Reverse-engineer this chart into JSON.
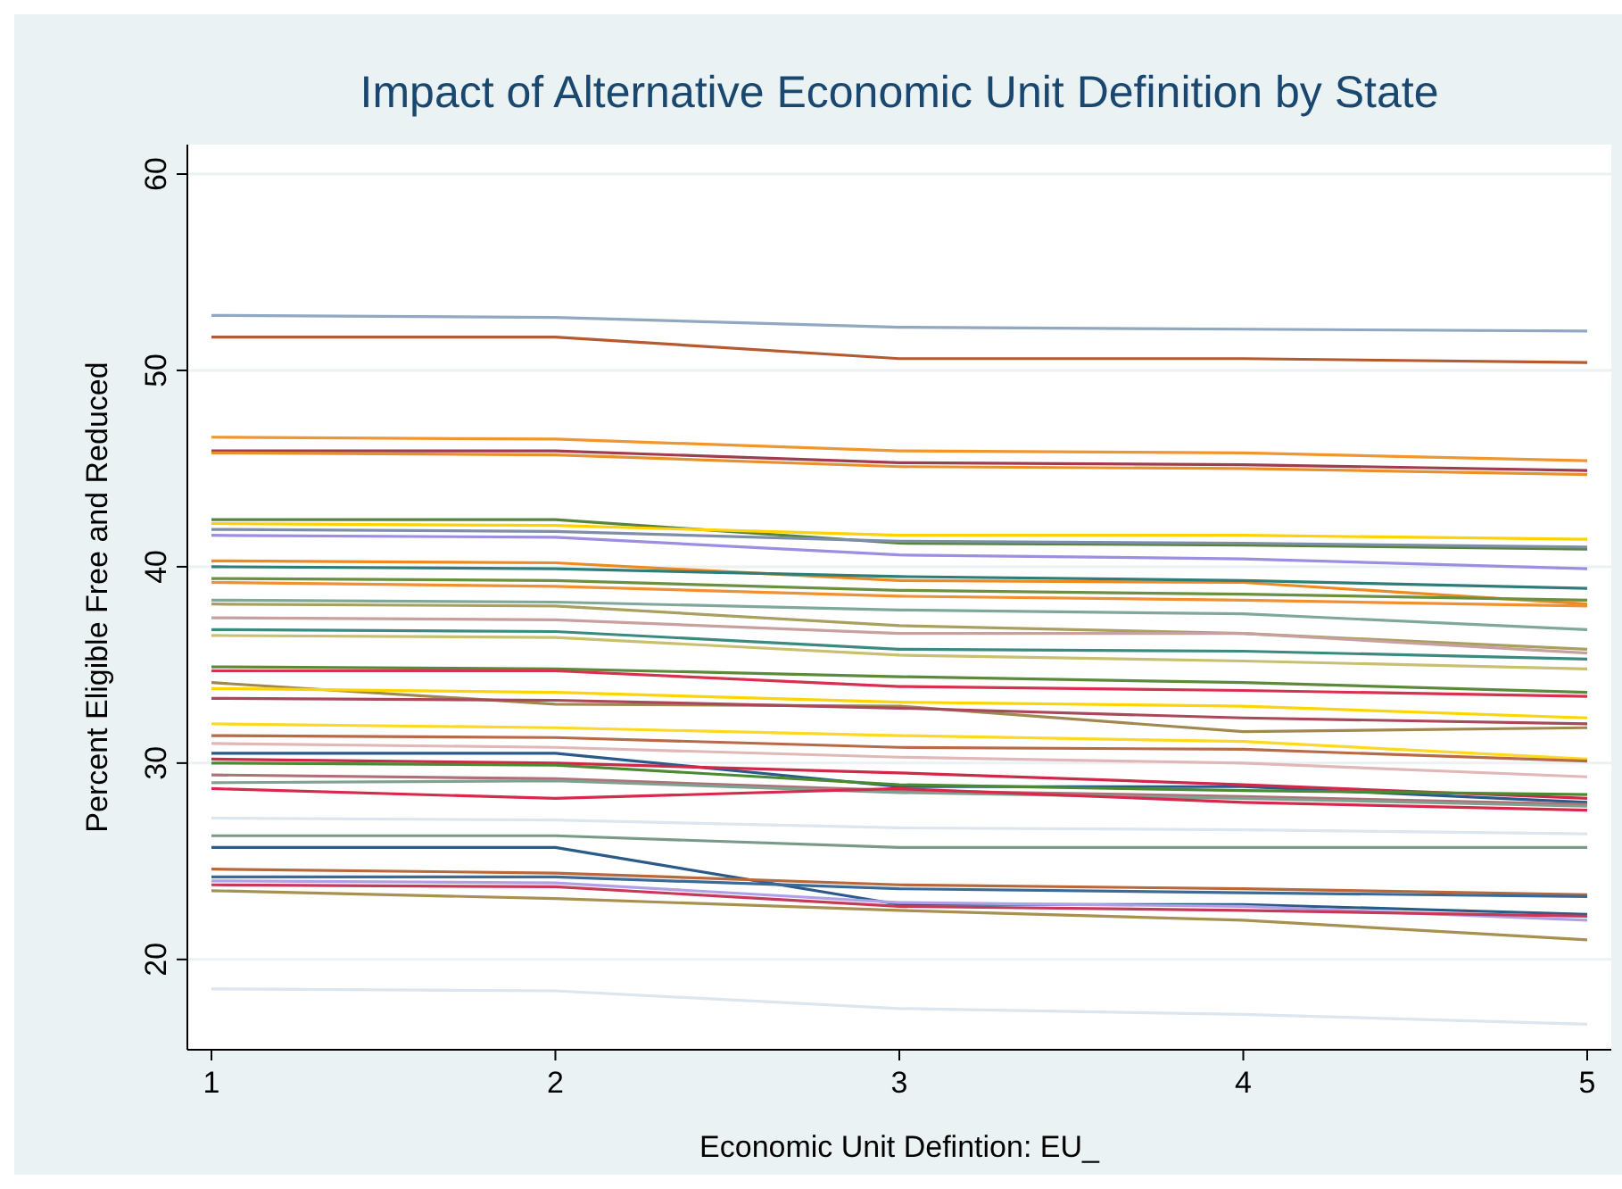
{
  "chart_data": {
    "type": "line",
    "title": "Impact of Alternative Economic Unit Definition by State",
    "xlabel": "Economic Unit Defintion: EU_",
    "ylabel": "Percent Eligible Free and Reduced",
    "x": [
      1,
      2,
      3,
      4,
      5
    ],
    "xlim": [
      0.93,
      5.07
    ],
    "xticks": [
      1,
      2,
      3,
      4,
      5
    ],
    "ylim": [
      15.4,
      61.5
    ],
    "yticks": [
      20,
      30,
      40,
      50,
      60
    ],
    "grid": "y",
    "series": [
      {
        "color": "#90a8c0",
        "values": [
          52.8,
          52.7,
          52.2,
          52.1,
          52.0
        ]
      },
      {
        "color": "#b55a30",
        "values": [
          51.7,
          51.7,
          50.6,
          50.6,
          50.4
        ]
      },
      {
        "color": "#f0962e",
        "values": [
          46.6,
          46.5,
          45.9,
          45.8,
          45.4
        ]
      },
      {
        "color": "#a03c50",
        "values": [
          45.9,
          45.9,
          45.3,
          45.2,
          44.9
        ]
      },
      {
        "color": "#e8902a",
        "values": [
          45.8,
          45.7,
          45.1,
          45.0,
          44.7
        ]
      },
      {
        "color": "#55843c",
        "values": [
          42.4,
          42.4,
          41.2,
          41.1,
          40.9
        ]
      },
      {
        "color": "#ffd200",
        "values": [
          42.2,
          42.1,
          41.6,
          41.6,
          41.4
        ]
      },
      {
        "color": "#7d8fa8",
        "values": [
          41.9,
          41.8,
          41.3,
          41.2,
          41.0
        ]
      },
      {
        "color": "#9a8fe0",
        "values": [
          41.6,
          41.5,
          40.6,
          40.4,
          39.9
        ]
      },
      {
        "color": "#ee8a20",
        "values": [
          40.3,
          40.2,
          39.3,
          39.2,
          38.1
        ]
      },
      {
        "color": "#2e7d78",
        "values": [
          40.0,
          39.9,
          39.5,
          39.3,
          38.9
        ]
      },
      {
        "color": "#6a9040",
        "values": [
          39.4,
          39.3,
          38.8,
          38.6,
          38.3
        ]
      },
      {
        "color": "#f09030",
        "values": [
          39.2,
          39.0,
          38.5,
          38.3,
          38.0
        ]
      },
      {
        "color": "#80a898",
        "values": [
          38.3,
          38.2,
          37.8,
          37.6,
          36.8
        ]
      },
      {
        "color": "#a8a060",
        "values": [
          38.1,
          38.0,
          37.0,
          36.6,
          35.8
        ]
      },
      {
        "color": "#c8a0a0",
        "values": [
          37.4,
          37.3,
          36.6,
          36.6,
          35.6
        ]
      },
      {
        "color": "#3a8a80",
        "values": [
          36.8,
          36.7,
          35.8,
          35.7,
          35.3
        ]
      },
      {
        "color": "#c8c070",
        "values": [
          36.5,
          36.4,
          35.5,
          35.2,
          34.8
        ]
      },
      {
        "color": "#5a8a3a",
        "values": [
          34.9,
          34.8,
          34.4,
          34.1,
          33.6
        ]
      },
      {
        "color": "#d83050",
        "values": [
          34.7,
          34.7,
          33.9,
          33.7,
          33.4
        ]
      },
      {
        "color": "#a08850",
        "values": [
          34.1,
          33.0,
          32.9,
          31.6,
          31.8
        ]
      },
      {
        "color": "#ffd500",
        "values": [
          33.8,
          33.6,
          33.1,
          32.9,
          32.3
        ]
      },
      {
        "color": "#a84858",
        "values": [
          33.3,
          33.2,
          32.8,
          32.3,
          32.0
        ]
      },
      {
        "color": "#ffd820",
        "values": [
          32.0,
          31.8,
          31.4,
          31.1,
          30.2
        ]
      },
      {
        "color": "#b86a48",
        "values": [
          31.4,
          31.3,
          30.8,
          30.7,
          30.1
        ]
      },
      {
        "color": "#e0b8b8",
        "values": [
          31.0,
          30.8,
          30.3,
          30.0,
          29.3
        ]
      },
      {
        "color": "#2a5a8a",
        "values": [
          30.5,
          30.5,
          28.8,
          28.8,
          28.0
        ]
      },
      {
        "color": "#d02848",
        "values": [
          30.2,
          30.0,
          29.5,
          28.9,
          28.2
        ]
      },
      {
        "color": "#4a8a30",
        "values": [
          30.0,
          29.9,
          28.9,
          28.6,
          28.4
        ]
      },
      {
        "color": "#b07078",
        "values": [
          29.4,
          29.2,
          28.6,
          28.3,
          27.9
        ]
      },
      {
        "color": "#80a090",
        "values": [
          29.0,
          29.1,
          28.5,
          28.2,
          27.8
        ]
      },
      {
        "color": "#d8284c",
        "values": [
          28.7,
          28.2,
          28.7,
          28.0,
          27.6
        ]
      },
      {
        "color": "#dce6ee",
        "values": [
          27.2,
          27.1,
          26.7,
          26.6,
          26.4
        ]
      },
      {
        "color": "#7a9a88",
        "values": [
          26.3,
          26.3,
          25.7,
          25.7,
          25.7
        ]
      },
      {
        "color": "#2a5a88",
        "values": [
          25.7,
          25.7,
          22.8,
          22.8,
          22.3
        ]
      },
      {
        "color": "#b8683a",
        "values": [
          24.6,
          24.4,
          23.8,
          23.6,
          23.3
        ]
      },
      {
        "color": "#3a6a98",
        "values": [
          24.2,
          24.2,
          23.6,
          23.4,
          23.2
        ]
      },
      {
        "color": "#b0a0e8",
        "values": [
          24.0,
          23.9,
          22.9,
          22.7,
          22.0
        ]
      },
      {
        "color": "#c83858",
        "values": [
          23.8,
          23.7,
          22.7,
          22.5,
          22.2
        ]
      },
      {
        "color": "#a89050",
        "values": [
          23.5,
          23.1,
          22.5,
          22.0,
          21.0
        ]
      },
      {
        "color": "#dce6ee",
        "values": [
          18.5,
          18.4,
          17.5,
          17.2,
          16.7
        ]
      }
    ]
  }
}
